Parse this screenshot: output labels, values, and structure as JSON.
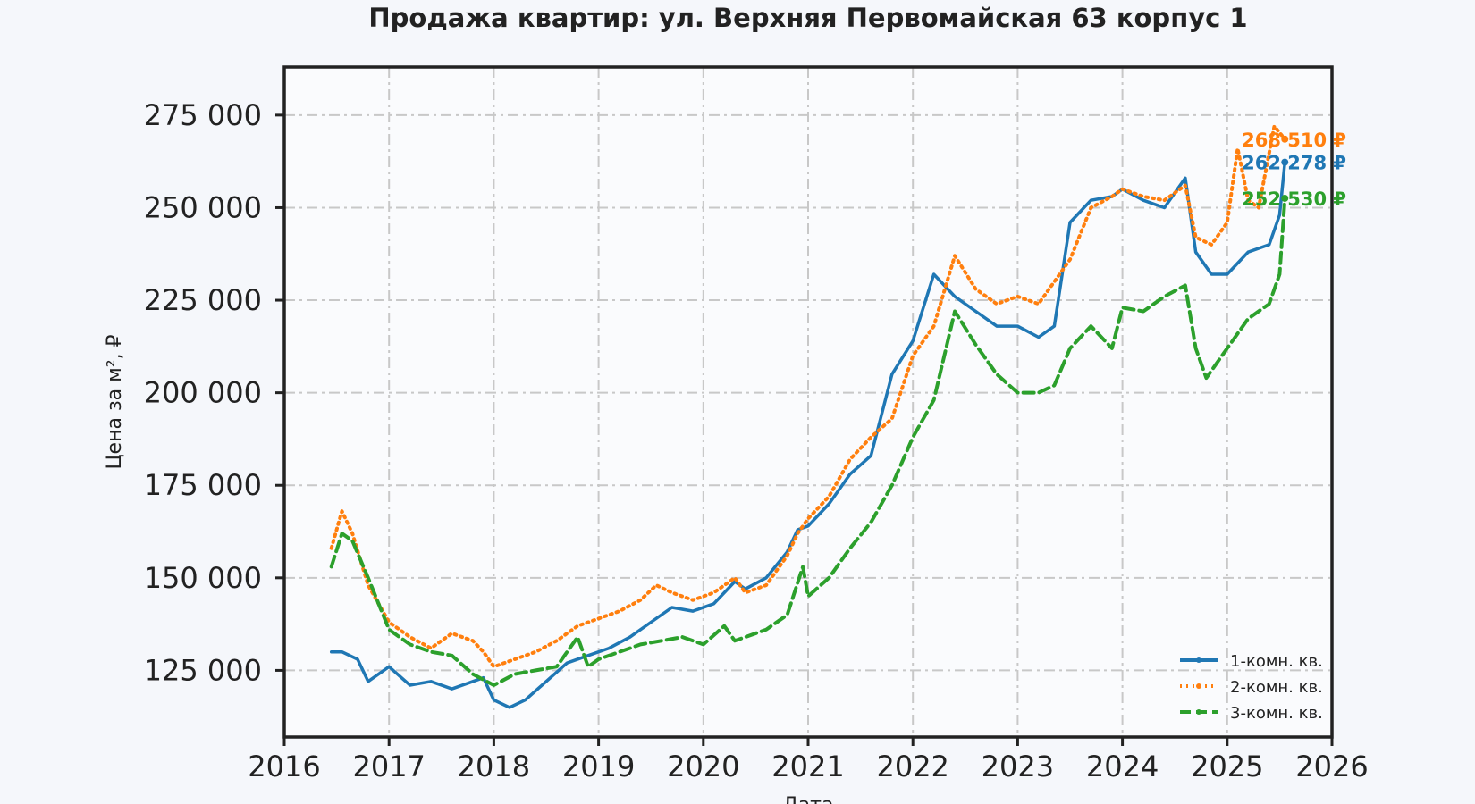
{
  "chart_data": {
    "type": "line",
    "title": "Продажа квартир: ул. Верхняя Первомайская 63 корпус 1",
    "xlabel": "Дата",
    "ylabel": "Цена за м², ₽",
    "xlim": [
      2016,
      2026
    ],
    "ylim": [
      107000,
      288000
    ],
    "x_ticks": [
      2016,
      2017,
      2018,
      2019,
      2020,
      2021,
      2022,
      2023,
      2024,
      2025,
      2026
    ],
    "y_ticks": [
      125000,
      150000,
      175000,
      200000,
      225000,
      250000,
      275000
    ],
    "y_tick_labels": [
      "125 000",
      "150 000",
      "175 000",
      "200 000",
      "225 000",
      "250 000",
      "275 000"
    ],
    "grid": true,
    "legend_position": "bottom-right",
    "series": [
      {
        "name": "1-комн. кв.",
        "color": "#1f77b4",
        "style": "solid",
        "end_label": "262 278 ₽",
        "x": [
          2016.45,
          2016.55,
          2016.7,
          2016.8,
          2016.9,
          2017.0,
          2017.2,
          2017.4,
          2017.6,
          2017.8,
          2017.9,
          2018.0,
          2018.15,
          2018.3,
          2018.5,
          2018.7,
          2018.9,
          2019.1,
          2019.3,
          2019.5,
          2019.7,
          2019.9,
          2020.1,
          2020.3,
          2020.4,
          2020.6,
          2020.8,
          2020.9,
          2021.0,
          2021.2,
          2021.4,
          2021.6,
          2021.8,
          2022.0,
          2022.2,
          2022.4,
          2022.6,
          2022.8,
          2023.0,
          2023.2,
          2023.35,
          2023.5,
          2023.7,
          2023.9,
          2024.0,
          2024.2,
          2024.4,
          2024.6,
          2024.7,
          2024.85,
          2025.0,
          2025.2,
          2025.4,
          2025.5,
          2025.55
        ],
        "y": [
          130000,
          130000,
          128000,
          122000,
          124000,
          126000,
          121000,
          122000,
          120000,
          122000,
          123000,
          117000,
          115000,
          117000,
          122000,
          127000,
          129000,
          131000,
          134000,
          138000,
          142000,
          141000,
          143000,
          149000,
          147000,
          150000,
          157000,
          163000,
          164000,
          170000,
          178000,
          183000,
          205000,
          214000,
          232000,
          226000,
          222000,
          218000,
          218000,
          215000,
          218000,
          246000,
          252000,
          253000,
          255000,
          252000,
          250000,
          258000,
          238000,
          232000,
          232000,
          238000,
          240000,
          248000,
          262278
        ]
      },
      {
        "name": "2-комн. кв.",
        "color": "#ff7f0e",
        "style": "dotted",
        "end_label": "268 510 ₽",
        "x": [
          2016.45,
          2016.55,
          2016.65,
          2016.8,
          2017.0,
          2017.2,
          2017.4,
          2017.6,
          2017.8,
          2017.9,
          2018.0,
          2018.2,
          2018.4,
          2018.6,
          2018.8,
          2019.0,
          2019.2,
          2019.4,
          2019.55,
          2019.7,
          2019.9,
          2020.1,
          2020.3,
          2020.4,
          2020.6,
          2020.8,
          2020.9,
          2021.0,
          2021.2,
          2021.4,
          2021.6,
          2021.8,
          2022.0,
          2022.2,
          2022.4,
          2022.6,
          2022.8,
          2023.0,
          2023.2,
          2023.35,
          2023.5,
          2023.7,
          2023.9,
          2024.0,
          2024.2,
          2024.4,
          2024.6,
          2024.7,
          2024.85,
          2025.0,
          2025.1,
          2025.2,
          2025.3,
          2025.45,
          2025.55
        ],
        "y": [
          158000,
          168000,
          162000,
          148000,
          138000,
          134000,
          131000,
          135000,
          133000,
          130000,
          126000,
          128000,
          130000,
          133000,
          137000,
          139000,
          141000,
          144000,
          148000,
          146000,
          144000,
          146000,
          150000,
          146000,
          148000,
          156000,
          162000,
          166000,
          172000,
          182000,
          188000,
          193000,
          210000,
          218000,
          237000,
          228000,
          224000,
          226000,
          224000,
          230000,
          236000,
          250000,
          253000,
          255000,
          253000,
          252000,
          256000,
          242000,
          240000,
          246000,
          266000,
          252000,
          250000,
          272000,
          268510
        ]
      },
      {
        "name": "3-комн. кв.",
        "color": "#2ca02c",
        "style": "dashed",
        "end_label": "252 530 ₽",
        "x": [
          2016.45,
          2016.55,
          2016.65,
          2016.8,
          2017.0,
          2017.2,
          2017.4,
          2017.6,
          2017.8,
          2018.0,
          2018.2,
          2018.4,
          2018.6,
          2018.8,
          2018.9,
          2019.0,
          2019.2,
          2019.4,
          2019.6,
          2019.8,
          2020.0,
          2020.2,
          2020.3,
          2020.4,
          2020.6,
          2020.8,
          2020.95,
          2021.0,
          2021.2,
          2021.4,
          2021.6,
          2021.8,
          2022.0,
          2022.2,
          2022.4,
          2022.6,
          2022.8,
          2023.0,
          2023.2,
          2023.35,
          2023.5,
          2023.7,
          2023.9,
          2024.0,
          2024.2,
          2024.4,
          2024.6,
          2024.7,
          2024.8,
          2025.0,
          2025.2,
          2025.4,
          2025.5,
          2025.55
        ],
        "y": [
          153000,
          162000,
          160000,
          150000,
          136000,
          132000,
          130000,
          129000,
          124000,
          121000,
          124000,
          125000,
          126000,
          134000,
          126000,
          128000,
          130000,
          132000,
          133000,
          134000,
          132000,
          137000,
          133000,
          134000,
          136000,
          140000,
          153000,
          145000,
          150000,
          158000,
          165000,
          175000,
          188000,
          198000,
          222000,
          213000,
          205000,
          200000,
          200000,
          202000,
          212000,
          218000,
          212000,
          223000,
          222000,
          226000,
          229000,
          212000,
          204000,
          212000,
          220000,
          224000,
          232000,
          252530
        ]
      }
    ]
  }
}
